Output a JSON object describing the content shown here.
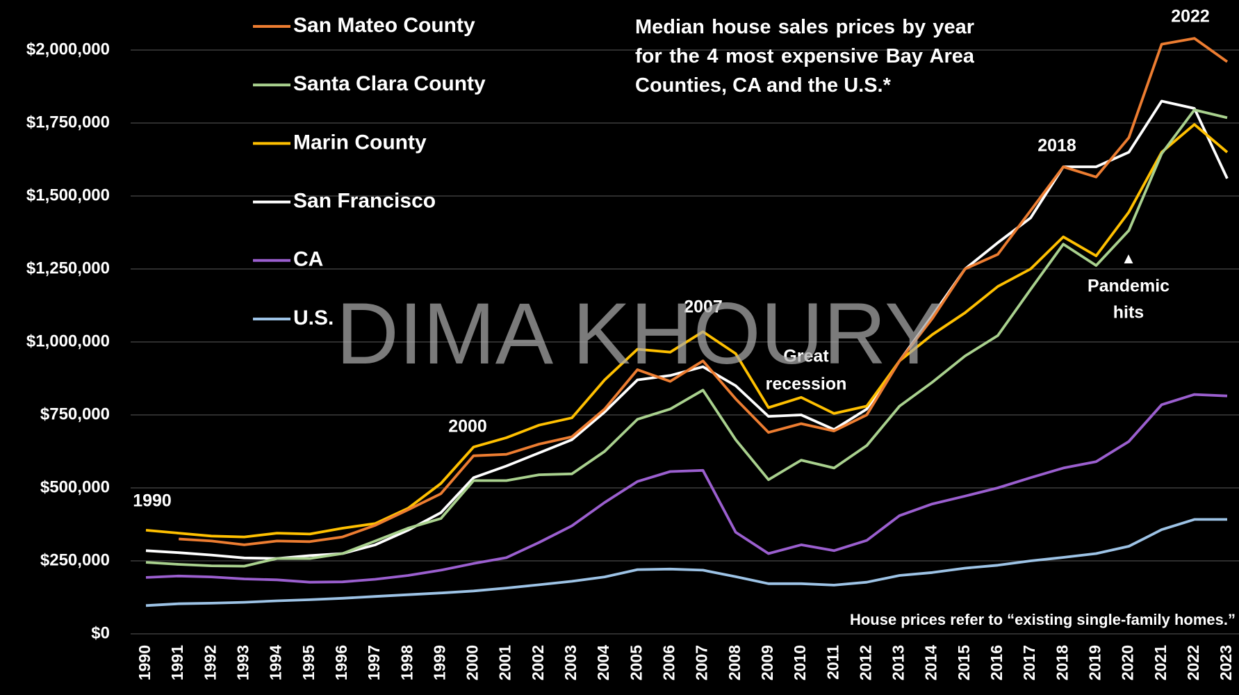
{
  "chart_data": {
    "type": "line",
    "title": "Median house sales prices by year for the 4 most expensive Bay Area Counties, CA and the U.S.*",
    "note": "House prices refer to “existing single-family homes.”",
    "watermark": "DIMA KHOURY",
    "annotations": [
      {
        "lines": [
          "1990"
        ]
      },
      {
        "lines": [
          "2000"
        ]
      },
      {
        "lines": [
          "2007"
        ]
      },
      {
        "lines": [
          "Great",
          "recession"
        ]
      },
      {
        "lines": [
          "2018"
        ]
      },
      {
        "lines": [
          "2022"
        ]
      },
      {
        "lines": [
          "▲",
          "Pandemic",
          "hits"
        ]
      }
    ],
    "categories": [
      "1990",
      "1991",
      "1992",
      "1993",
      "1994",
      "1995",
      "1996",
      "1997",
      "1998",
      "1999",
      "2000",
      "2001",
      "2002",
      "2003",
      "2004",
      "2005",
      "2006",
      "2007",
      "2008",
      "2009",
      "2010",
      "2011",
      "2012",
      "2013",
      "2014",
      "2015",
      "2016",
      "2017",
      "2018",
      "2019",
      "2020",
      "2021",
      "2022",
      "2023"
    ],
    "ylim": [
      0,
      2000000
    ],
    "yticks": [
      {
        "value": 0,
        "label": "$0"
      },
      {
        "value": 250000,
        "label": "$250,000"
      },
      {
        "value": 500000,
        "label": "$500,000"
      },
      {
        "value": 750000,
        "label": "$750,000"
      },
      {
        "value": 1000000,
        "label": "$1,000,000"
      },
      {
        "value": 1250000,
        "label": "$1,250,000"
      },
      {
        "value": 1500000,
        "label": "$1,500,000"
      },
      {
        "value": 1750000,
        "label": "$1,750,000"
      },
      {
        "value": 2000000,
        "label": "$2,000,000"
      }
    ],
    "grid": true,
    "legend": "top-left",
    "series": [
      {
        "name": "San Mateo County",
        "color": "#ED7D31",
        "values": [
          null,
          325000,
          318000,
          305000,
          318000,
          316000,
          332000,
          372000,
          425000,
          480000,
          610000,
          615000,
          650000,
          675000,
          770000,
          905000,
          865000,
          935000,
          805000,
          690000,
          720000,
          695000,
          750000,
          935000,
          1080000,
          1250000,
          1300000,
          1450000,
          1600000,
          1565000,
          1700000,
          2020000,
          2040000,
          1960000
        ]
      },
      {
        "name": "Santa Clara County",
        "color": "#A9D18E",
        "values": [
          245000,
          238000,
          233000,
          232000,
          258000,
          258000,
          275000,
          318000,
          362000,
          395000,
          525000,
          525000,
          545000,
          548000,
          625000,
          735000,
          770000,
          835000,
          665000,
          528000,
          595000,
          568000,
          645000,
          780000,
          862000,
          952000,
          1022000,
          1180000,
          1335000,
          1262000,
          1382000,
          1645000,
          1795000,
          1768000
        ]
      },
      {
        "name": "Marin County",
        "color": "#FFC000",
        "values": [
          355000,
          345000,
          335000,
          332000,
          345000,
          342000,
          362000,
          378000,
          430000,
          515000,
          640000,
          672000,
          715000,
          740000,
          870000,
          975000,
          965000,
          1035000,
          960000,
          775000,
          810000,
          755000,
          780000,
          935000,
          1025000,
          1100000,
          1190000,
          1250000,
          1360000,
          1295000,
          1445000,
          1650000,
          1745000,
          1650000
        ]
      },
      {
        "name": "San Francisco",
        "color": "#FFFFFF",
        "values": [
          285000,
          278000,
          270000,
          260000,
          258000,
          268000,
          275000,
          305000,
          355000,
          415000,
          535000,
          575000,
          620000,
          665000,
          760000,
          870000,
          885000,
          915000,
          850000,
          745000,
          750000,
          700000,
          770000,
          935000,
          1090000,
          1250000,
          1340000,
          1425000,
          1600000,
          1600000,
          1650000,
          1825000,
          1800000,
          1560000
        ]
      },
      {
        "name": "CA",
        "color": "#9B5FCF",
        "values": [
          193000,
          198000,
          195000,
          188000,
          185000,
          177000,
          178000,
          187000,
          200000,
          218000,
          241000,
          261000,
          313000,
          370000,
          450000,
          522000,
          556000,
          560000,
          348000,
          275000,
          305000,
          285000,
          320000,
          405000,
          445000,
          472000,
          500000,
          535000,
          568000,
          590000,
          659000,
          785000,
          820000,
          815000
        ]
      },
      {
        "name": "U.S.",
        "color": "#9DC3E6",
        "values": [
          97000,
          103000,
          105000,
          108000,
          113000,
          117000,
          122000,
          128000,
          134000,
          140000,
          147000,
          157000,
          168000,
          180000,
          195000,
          220000,
          222000,
          218000,
          196000,
          172000,
          172000,
          167000,
          177000,
          200000,
          210000,
          225000,
          235000,
          250000,
          262000,
          275000,
          300000,
          357000,
          392000,
          392000
        ]
      }
    ]
  }
}
